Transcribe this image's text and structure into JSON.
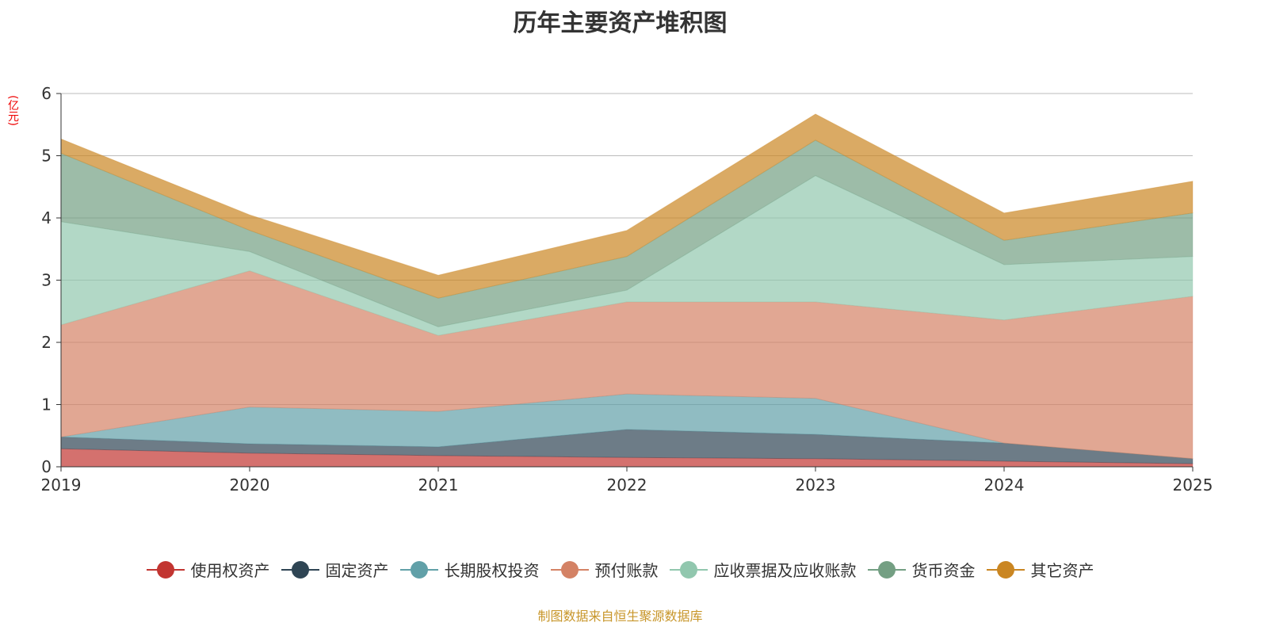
{
  "chart_data": {
    "type": "area",
    "stacked": true,
    "title": "历年主要资产堆积图",
    "ylabel": "(亿元)",
    "xlabel": "",
    "categories": [
      "2019",
      "2020",
      "2021",
      "2022",
      "2023",
      "2024",
      "2025"
    ],
    "ylim": [
      0,
      6
    ],
    "yticks": [
      "0",
      "1",
      "2",
      "3",
      "4",
      "5",
      "6"
    ],
    "grid": true,
    "legend_position": "bottom",
    "series": [
      {
        "name": "使用权资产",
        "color": "#c23531",
        "values": [
          0.29,
          0.22,
          0.18,
          0.15,
          0.13,
          0.09,
          0.05
        ]
      },
      {
        "name": "固定资产",
        "color": "#2f4554",
        "values": [
          0.19,
          0.15,
          0.14,
          0.45,
          0.39,
          0.29,
          0.08
        ]
      },
      {
        "name": "长期股权投资",
        "color": "#61a0a8",
        "values": [
          0,
          0.59,
          0.57,
          0.57,
          0.58,
          0,
          0
        ]
      },
      {
        "name": "预付账款",
        "color": "#d48265",
        "values": [
          1.8,
          2.19,
          1.22,
          1.48,
          1.55,
          1.98,
          2.61
        ]
      },
      {
        "name": "应收票据及应收账款",
        "color": "#91c7ae",
        "values": [
          1.66,
          0.31,
          0.14,
          0.19,
          2.03,
          0.89,
          0.64
        ]
      },
      {
        "name": "货币资金",
        "color": "#749f83",
        "values": [
          1.1,
          0.34,
          0.46,
          0.54,
          0.57,
          0.39,
          0.7
        ]
      },
      {
        "name": "其它资产",
        "color": "#ca8622",
        "values": [
          0.23,
          0.25,
          0.37,
          0.42,
          0.42,
          0.44,
          0.51
        ]
      }
    ]
  },
  "source": "制图数据来自恒生聚源数据库"
}
